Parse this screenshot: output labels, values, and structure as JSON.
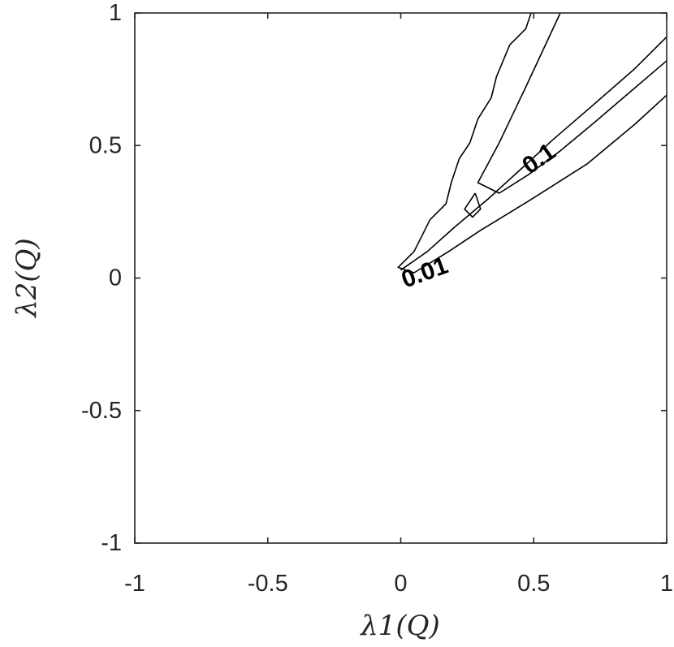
{
  "chart_data": {
    "type": "contour",
    "title": "",
    "xlabel": "λ1(Q)",
    "ylabel": "λ2(Q)",
    "xlim": [
      -1,
      1
    ],
    "ylim": [
      -1,
      1
    ],
    "grid": false,
    "xticks": [
      -1,
      -0.5,
      0,
      0.5,
      1
    ],
    "yticks": [
      -1,
      -0.5,
      0,
      0.5,
      1
    ],
    "xtick_labels": [
      "-1",
      "-0.5",
      "0",
      "0.5",
      "1"
    ],
    "ytick_labels": [
      "-1",
      "-0.5",
      "0",
      "0.5",
      "1"
    ],
    "contours": [
      {
        "level_label": "0.01",
        "label_at": [
          0.09,
          0.02
        ],
        "label_angle_deg": -20,
        "points": [
          [
            0.49,
            1.0
          ],
          [
            0.47,
            0.94
          ],
          [
            0.41,
            0.88
          ],
          [
            0.36,
            0.76
          ],
          [
            0.34,
            0.68
          ],
          [
            0.29,
            0.6
          ],
          [
            0.26,
            0.51
          ],
          [
            0.22,
            0.45
          ],
          [
            0.19,
            0.36
          ],
          [
            0.18,
            0.32
          ],
          [
            0.17,
            0.28
          ],
          [
            0.11,
            0.22
          ],
          [
            0.08,
            0.16
          ],
          [
            0.05,
            0.1
          ],
          [
            0.02,
            0.07
          ],
          [
            -0.01,
            0.04
          ],
          [
            0.05,
            0.02
          ],
          [
            0.18,
            0.1
          ],
          [
            0.3,
            0.18
          ],
          [
            0.48,
            0.29
          ],
          [
            0.7,
            0.43
          ],
          [
            0.88,
            0.58
          ],
          [
            1.0,
            0.69
          ]
        ]
      },
      {
        "level_label": "0.1",
        "label_at": [
          0.52,
          0.45
        ],
        "label_angle_deg": -35,
        "points": [
          [
            0.6,
            1.0
          ],
          [
            0.47,
            0.72
          ],
          [
            0.37,
            0.51
          ],
          [
            0.29,
            0.36
          ],
          [
            0.37,
            0.32
          ],
          [
            0.48,
            0.39
          ],
          [
            0.6,
            0.48
          ],
          [
            0.72,
            0.58
          ],
          [
            0.86,
            0.7
          ],
          [
            1.0,
            0.82
          ]
        ]
      },
      {
        "level_label": "0.1",
        "label_at": null,
        "label_angle_deg": 0,
        "points": [
          [
            0.28,
            0.32
          ],
          [
            0.3,
            0.26
          ],
          [
            0.27,
            0.23
          ],
          [
            0.24,
            0.26
          ],
          [
            0.28,
            0.32
          ]
        ]
      },
      {
        "level_label": "0.01",
        "label_at": null,
        "label_angle_deg": 0,
        "points": [
          [
            1.0,
            0.91
          ],
          [
            0.88,
            0.79
          ],
          [
            0.72,
            0.65
          ],
          [
            0.57,
            0.52
          ],
          [
            0.44,
            0.4
          ],
          [
            0.33,
            0.3
          ],
          [
            0.2,
            0.19
          ],
          [
            0.1,
            0.1
          ],
          [
            0.0,
            0.03
          ]
        ]
      }
    ]
  }
}
